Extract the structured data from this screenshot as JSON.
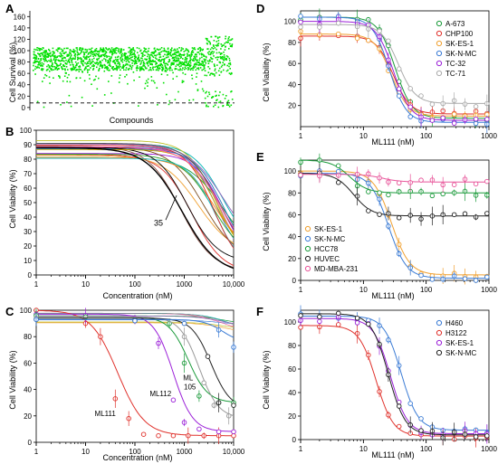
{
  "chart_data": [
    {
      "panel": "A",
      "type": "scatter",
      "xlabel": "Compounds",
      "ylabel": "Cell Survival (%)",
      "ylim": [
        -5,
        170
      ],
      "yticks": [
        "0",
        "20",
        "40",
        "60",
        "80",
        "100",
        "120",
        "140",
        "160"
      ],
      "threshold_y": 8,
      "color": "#00e000"
    },
    {
      "panel": "B",
      "type": "line",
      "xscale": "log",
      "xlabel": "Concentration (nM)",
      "ylabel": "Cell Viability (%)",
      "xlim": [
        1,
        10000
      ],
      "ylim": [
        0,
        100
      ],
      "xticks": [
        "1",
        "10",
        "100",
        "1000",
        "10,000"
      ],
      "yticks": [
        "0",
        "10",
        "20",
        "30",
        "40",
        "50",
        "60",
        "70",
        "80",
        "90",
        "100"
      ],
      "annotation": "35",
      "series_count": 20
    },
    {
      "panel": "C",
      "type": "line",
      "xscale": "log",
      "xlabel": "Concentration (nM)",
      "ylabel": "Cell Viability (%)",
      "xlim": [
        1,
        10000
      ],
      "ylim": [
        0,
        100
      ],
      "xticks": [
        "1",
        "10",
        "100",
        "1000",
        "10,000"
      ],
      "yticks": [
        "0",
        "20",
        "40",
        "60",
        "80",
        "100"
      ],
      "labels": [
        "ML111",
        "ML112",
        "ML",
        "105"
      ],
      "series": [
        {
          "name": "ML111",
          "color": "#e0312b",
          "top": 100,
          "bottom": 5,
          "ec50": 45,
          "x": [
            1,
            10,
            20,
            40,
            75,
            150,
            300,
            600,
            1200,
            2500,
            5000,
            10000
          ],
          "y": [
            100,
            90,
            80,
            33,
            18,
            6,
            5,
            5,
            5,
            5,
            5,
            5
          ]
        },
        {
          "name": "ML112",
          "color": "#9b1fd8",
          "top": 97,
          "bottom": 8,
          "ec50": 600,
          "x": [
            1,
            10,
            100,
            300,
            600,
            1000,
            2000,
            5000,
            10000
          ],
          "y": [
            97,
            96,
            93,
            75,
            32,
            15,
            10,
            8,
            8
          ]
        },
        {
          "name": "ML105",
          "color": "#1a9a3a",
          "top": 95,
          "bottom": 30,
          "ec50": 1200,
          "x": [
            1,
            10,
            100,
            500,
            1000,
            2000,
            5000,
            10000
          ],
          "y": [
            96,
            95,
            93,
            90,
            60,
            35,
            30,
            30
          ]
        },
        {
          "name": "",
          "color": "#999999",
          "top": 95,
          "bottom": 18,
          "ec50": 2000,
          "x": [
            1,
            100,
            1000,
            2500,
            4000,
            8000
          ],
          "y": [
            94,
            93,
            80,
            45,
            28,
            20
          ]
        },
        {
          "name": "",
          "color": "#222222",
          "top": 94,
          "bottom": 25,
          "ec50": 3500,
          "x": [
            1,
            100,
            1000,
            3000,
            5000,
            10000
          ],
          "y": [
            93,
            92,
            90,
            65,
            30,
            28
          ]
        },
        {
          "name": "",
          "color": "#3a7bd5",
          "top": 93,
          "bottom": 75,
          "ec50": 6000,
          "x": [
            1,
            100,
            1000,
            5000,
            10000
          ],
          "y": [
            93,
            92,
            90,
            85,
            72
          ]
        }
      ]
    },
    {
      "panel": "D",
      "type": "line",
      "xscale": "log",
      "xlabel": "ML111 (nM)",
      "ylabel": "Cell Viability (%)",
      "xlim": [
        1,
        1000
      ],
      "ylim": [
        0,
        110
      ],
      "xticks": [
        "1",
        "10",
        "100",
        "1000"
      ],
      "yticks": [
        "20",
        "40",
        "60",
        "80",
        "100"
      ],
      "legend_position": "right",
      "series": [
        {
          "name": "A-673",
          "color": "#1a9a3a",
          "top": 104,
          "bottom": 8,
          "ec50": 32
        },
        {
          "name": "CHP100",
          "color": "#e0312b",
          "top": 86,
          "bottom": 12,
          "ec50": 30
        },
        {
          "name": "SK-ES-1",
          "color": "#f0a030",
          "top": 88,
          "bottom": 10,
          "ec50": 28
        },
        {
          "name": "SK-N-MC",
          "color": "#3a7bd5",
          "top": 104,
          "bottom": 4,
          "ec50": 26
        },
        {
          "name": "TC-32",
          "color": "#9b1fd8",
          "top": 100,
          "bottom": 6,
          "ec50": 30
        },
        {
          "name": "TC-71",
          "color": "#aaaaaa",
          "top": 97,
          "bottom": 22,
          "ec50": 36
        }
      ]
    },
    {
      "panel": "E",
      "type": "line",
      "xscale": "log",
      "xlabel": "ML111 (nM)",
      "ylabel": "Cell Viability (%)",
      "xlim": [
        1,
        1000
      ],
      "ylim": [
        0,
        110
      ],
      "xticks": [
        "1",
        "10",
        "100",
        "1000"
      ],
      "yticks": [
        "0",
        "20",
        "40",
        "60",
        "80",
        "100"
      ],
      "legend_position": "bottom-left",
      "series": [
        {
          "name": "SK-ES-1",
          "color": "#f0a030",
          "top": 100,
          "bottom": 5,
          "ec50": 28
        },
        {
          "name": "SK-N-MC",
          "color": "#3a7bd5",
          "top": 98,
          "bottom": 2,
          "ec50": 25
        },
        {
          "name": "HCC78",
          "color": "#1a9a3a",
          "top": 110,
          "bottom": 80,
          "ec50": 6
        },
        {
          "name": "HUVEC",
          "color": "#222222",
          "top": 98,
          "bottom": 59,
          "ec50": 7
        },
        {
          "name": "MD-MBA-231",
          "color": "#e8559a",
          "top": 97,
          "bottom": 90,
          "ec50": 20
        }
      ]
    },
    {
      "panel": "F",
      "type": "line",
      "xscale": "log",
      "xlabel": "ML111 (nM)",
      "ylabel": "Cell Viability (%)",
      "xlim": [
        1,
        1000
      ],
      "ylim": [
        0,
        110
      ],
      "xticks": [
        "1",
        "10",
        "100",
        "1000"
      ],
      "yticks": [
        "0",
        "20",
        "40",
        "60",
        "80",
        "100"
      ],
      "legend_position": "right",
      "series": [
        {
          "name": "H460",
          "color": "#3a7bd5",
          "top": 105,
          "bottom": 8,
          "ec50": 40
        },
        {
          "name": "H3122",
          "color": "#e0312b",
          "top": 97,
          "bottom": 3,
          "ec50": 16
        },
        {
          "name": "SK-ES-1",
          "color": "#9b1fd8",
          "top": 103,
          "bottom": 5,
          "ec50": 27
        },
        {
          "name": "SK-N-MC",
          "color": "#222222",
          "top": 107,
          "bottom": 4,
          "ec50": 25
        }
      ]
    }
  ]
}
